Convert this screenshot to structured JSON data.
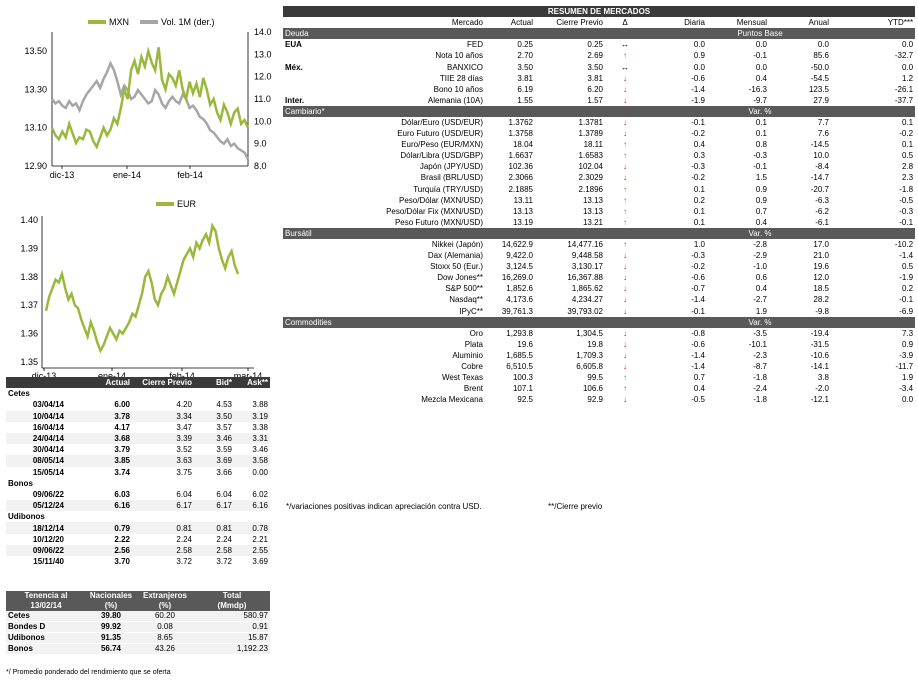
{
  "chart_data": [
    {
      "type": "line",
      "legend": [
        "MXN",
        "Vol. 1M (der.)"
      ],
      "colors": [
        "#9ab83c",
        "#a6a6a6"
      ],
      "x_tick_labels": [
        "dic-13",
        "ene-14",
        "feb-14"
      ],
      "y_left_ticks": [
        "13.50",
        "13.30",
        "13.10",
        "12.90"
      ],
      "y_right_ticks": [
        "14.0",
        "13.0",
        "12.0",
        "11.0",
        "10.0",
        "9.0",
        "8.0"
      ],
      "ylim_left": [
        12.9,
        13.6
      ],
      "ylim_right": [
        8.0,
        14.0
      ],
      "series": [
        {
          "name": "MXN",
          "axis": "left",
          "values": [
            13.1,
            13.06,
            13.04,
            13.08,
            13.05,
            13.12,
            13.07,
            13.02,
            13.05,
            13.04,
            13.09,
            13.08,
            13.03,
            13.0,
            13.05,
            13.1,
            13.06,
            13.09,
            13.15,
            13.12,
            13.2,
            13.3,
            13.25,
            13.4,
            13.45,
            13.38,
            13.47,
            13.42,
            13.5,
            13.44,
            13.4,
            13.52,
            13.35,
            13.3,
            13.38,
            13.36,
            13.32,
            13.4,
            13.3,
            13.25,
            13.34,
            13.28,
            13.33,
            13.26,
            13.36,
            13.3,
            13.22,
            13.25,
            13.18,
            13.14,
            13.22,
            13.18,
            13.12,
            13.18,
            13.2,
            13.12,
            13.14,
            13.1
          ]
        },
        {
          "name": "Vol. 1M (der.)",
          "axis": "right",
          "values": [
            11.0,
            10.8,
            10.9,
            10.7,
            10.6,
            10.9,
            10.7,
            10.8,
            10.5,
            10.9,
            11.2,
            11.4,
            11.6,
            11.8,
            11.5,
            11.9,
            12.2,
            12.6,
            12.3,
            11.8,
            11.2,
            11.6,
            11.4,
            11.0,
            11.1,
            11.4,
            11.2,
            11.0,
            10.8,
            10.9,
            11.4,
            11.2,
            10.8,
            10.6,
            10.9,
            11.1,
            10.9,
            10.8,
            11.2,
            11.0,
            10.6,
            10.7,
            10.5,
            10.2,
            10.1,
            9.9,
            9.6,
            9.5,
            9.3,
            9.1,
            9.0,
            9.2,
            8.9,
            9.0,
            8.8,
            8.7,
            8.6,
            8.3
          ]
        }
      ]
    },
    {
      "type": "line",
      "legend": [
        "EUR"
      ],
      "colors": [
        "#9ab83c"
      ],
      "x_tick_labels": [
        "dic-13",
        "ene-14",
        "feb-14",
        "mar-14"
      ],
      "y_ticks": [
        "1.40",
        "1.39",
        "1.38",
        "1.37",
        "1.36",
        "1.35"
      ],
      "ylim": [
        1.35,
        1.4
      ],
      "series": [
        {
          "name": "EUR",
          "values": [
            1.368,
            1.373,
            1.376,
            1.379,
            1.378,
            1.381,
            1.376,
            1.372,
            1.374,
            1.37,
            1.369,
            1.365,
            1.362,
            1.359,
            1.364,
            1.361,
            1.357,
            1.354,
            1.356,
            1.359,
            1.362,
            1.36,
            1.358,
            1.361,
            1.36,
            1.362,
            1.364,
            1.367,
            1.366,
            1.37,
            1.374,
            1.38,
            1.382,
            1.378,
            1.372,
            1.37,
            1.374,
            1.376,
            1.38,
            1.377,
            1.374,
            1.378,
            1.382,
            1.386,
            1.388,
            1.39,
            1.387,
            1.392,
            1.39,
            1.393,
            1.395,
            1.392,
            1.398,
            1.396,
            1.39,
            1.386,
            1.383,
            1.387,
            1.389,
            1.384,
            1.381
          ]
        }
      ]
    }
  ],
  "market": {
    "title": "RESUMEN DE MERCADOS",
    "headers": [
      "Mercado",
      "Actual",
      "Cierre Previo",
      "Δ",
      "Diaria",
      "Mensual",
      "Anual",
      "YTD***"
    ],
    "sections": [
      {
        "name": "Deuda",
        "unit": "Puntos Base",
        "rows": [
          {
            "region": "EUA",
            "label": "FED",
            "actual": "0.25",
            "prev": "0.25",
            "dir": "flat",
            "d": "0.0",
            "m": "0.0",
            "a": "0.0",
            "ytd": "0.0"
          },
          {
            "region": "",
            "label": "Nota 10 años",
            "actual": "2.70",
            "prev": "2.69",
            "dir": "up",
            "d": "0.9",
            "m": "-0.1",
            "a": "85.6",
            "ytd": "-32.7"
          },
          {
            "region": "Méx.",
            "label": "BANXICO",
            "actual": "3.50",
            "prev": "3.50",
            "dir": "flat",
            "d": "0.0",
            "m": "0.0",
            "a": "-50.0",
            "ytd": "0.0"
          },
          {
            "region": "",
            "label": "TIIE 28 días",
            "actual": "3.81",
            "prev": "3.81",
            "dir": "down",
            "d": "-0.6",
            "m": "0.4",
            "a": "-54.5",
            "ytd": "1.2"
          },
          {
            "region": "",
            "label": "Bono 10 años",
            "actual": "6.19",
            "prev": "6.20",
            "dir": "down",
            "d": "-1.4",
            "m": "-16.3",
            "a": "123.5",
            "ytd": "-26.1"
          },
          {
            "region": "Inter.",
            "label": "Alemania (10A)",
            "actual": "1.55",
            "prev": "1.57",
            "dir": "down",
            "d": "-1.9",
            "m": "-9.7",
            "a": "27.9",
            "ytd": "-37.7"
          }
        ]
      },
      {
        "name": "Cambiario*",
        "unit": "Var. %",
        "rows": [
          {
            "region": "",
            "label": "Dólar/Euro (USD/EUR)",
            "actual": "1.3762",
            "prev": "1.3781",
            "dir": "down",
            "d": "-0.1",
            "m": "0.1",
            "a": "7.7",
            "ytd": "0.1"
          },
          {
            "region": "",
            "label": "Euro Futuro (USD/EUR)",
            "actual": "1.3758",
            "prev": "1.3789",
            "dir": "down",
            "d": "-0.2",
            "m": "0.1",
            "a": "7.6",
            "ytd": "-0.2"
          },
          {
            "region": "",
            "label": "Euro/Peso (EUR/MXN)",
            "actual": "18.04",
            "prev": "18.11",
            "dir": "up",
            "d": "0.4",
            "m": "0.8",
            "a": "-14.5",
            "ytd": "0.1"
          },
          {
            "region": "",
            "label": "Dólar/Libra (USD/GBP)",
            "actual": "1.6637",
            "prev": "1.6583",
            "dir": "up",
            "d": "0.3",
            "m": "-0.3",
            "a": "10.0",
            "ytd": "0.5"
          },
          {
            "region": "",
            "label": "Japón (JPY/USD)",
            "actual": "102.36",
            "prev": "102.04",
            "dir": "down",
            "d": "-0.3",
            "m": "-0.1",
            "a": "-8.4",
            "ytd": "2.8"
          },
          {
            "region": "",
            "label": "Brasil (BRL/USD)",
            "actual": "2.3066",
            "prev": "2.3029",
            "dir": "down",
            "d": "-0.2",
            "m": "1.5",
            "a": "-14.7",
            "ytd": "2.3"
          },
          {
            "region": "",
            "label": "Turquía (TRY/USD)",
            "actual": "2.1885",
            "prev": "2.1896",
            "dir": "up",
            "d": "0.1",
            "m": "0.9",
            "a": "-20.7",
            "ytd": "-1.8"
          },
          {
            "region": "",
            "label": "Peso/Dólar (MXN/USD)",
            "actual": "13.11",
            "prev": "13.13",
            "dir": "up",
            "d": "0.2",
            "m": "0.9",
            "a": "-6.3",
            "ytd": "-0.5"
          },
          {
            "region": "",
            "label": "Peso/Dólar Fix (MXN/USD)",
            "actual": "13.13",
            "prev": "13.13",
            "dir": "up",
            "d": "0.1",
            "m": "0.7",
            "a": "-6.2",
            "ytd": "-0.3"
          },
          {
            "region": "",
            "label": "Peso Futuro (MXN/USD)",
            "actual": "13.19",
            "prev": "13.21",
            "dir": "up",
            "d": "0.1",
            "m": "0.4",
            "a": "-6.1",
            "ytd": "-0.1"
          }
        ]
      },
      {
        "name": "Bursátil",
        "unit": "Var. %",
        "rows": [
          {
            "region": "",
            "label": "Nikkei (Japón)",
            "actual": "14,622.9",
            "prev": "14,477.16",
            "dir": "up",
            "d": "1.0",
            "m": "-2.8",
            "a": "17.0",
            "ytd": "-10.2"
          },
          {
            "region": "",
            "label": "Dax (Alemania)",
            "actual": "9,422.0",
            "prev": "9,448.58",
            "dir": "down",
            "d": "-0.3",
            "m": "-2.9",
            "a": "21.0",
            "ytd": "-1.4"
          },
          {
            "region": "",
            "label": "Stoxx 50 (Eur.)",
            "actual": "3,124.5",
            "prev": "3,130.17",
            "dir": "down",
            "d": "-0.2",
            "m": "-1.0",
            "a": "19.6",
            "ytd": "0.5"
          },
          {
            "region": "",
            "label": "Dow Jones**",
            "actual": "16,269.0",
            "prev": "16,367.88",
            "dir": "down",
            "d": "-0.6",
            "m": "0.6",
            "a": "12.0",
            "ytd": "-1.9"
          },
          {
            "region": "",
            "label": "S&P 500**",
            "actual": "1,852.6",
            "prev": "1,865.62",
            "dir": "down",
            "d": "-0.7",
            "m": "0.4",
            "a": "18.5",
            "ytd": "0.2"
          },
          {
            "region": "",
            "label": "Nasdaq**",
            "actual": "4,173.6",
            "prev": "4,234.27",
            "dir": "down",
            "d": "-1.4",
            "m": "-2.7",
            "a": "28.2",
            "ytd": "-0.1"
          },
          {
            "region": "",
            "label": "IPyC**",
            "actual": "39,761.3",
            "prev": "39,793.02",
            "dir": "down",
            "d": "-0.1",
            "m": "1.9",
            "a": "-9.8",
            "ytd": "-6.9"
          }
        ]
      },
      {
        "name": "Commodities",
        "unit": "Var. %",
        "rows": [
          {
            "region": "",
            "label": "Oro",
            "actual": "1,293.8",
            "prev": "1,304.5",
            "dir": "down",
            "d": "-0.8",
            "m": "-3.5",
            "a": "-19.4",
            "ytd": "7.3"
          },
          {
            "region": "",
            "label": "Plata",
            "actual": "19.6",
            "prev": "19.8",
            "dir": "down",
            "d": "-0.6",
            "m": "-10.1",
            "a": "-31.5",
            "ytd": "0.9"
          },
          {
            "region": "",
            "label": "Aluminio",
            "actual": "1,685.5",
            "prev": "1,709.3",
            "dir": "down",
            "d": "-1.4",
            "m": "-2.3",
            "a": "-10.6",
            "ytd": "-3.9"
          },
          {
            "region": "",
            "label": "Cobre",
            "actual": "6,510.5",
            "prev": "6,605.8",
            "dir": "down",
            "d": "-1.4",
            "m": "-8.7",
            "a": "-14.1",
            "ytd": "-11.7"
          },
          {
            "region": "",
            "label": "West Texas",
            "actual": "100.3",
            "prev": "99.5",
            "dir": "up",
            "d": "0.7",
            "m": "-1.8",
            "a": "3.8",
            "ytd": "1.9"
          },
          {
            "region": "",
            "label": "Brent",
            "actual": "107.1",
            "prev": "106.6",
            "dir": "up",
            "d": "0.4",
            "m": "-2.4",
            "a": "-2.0",
            "ytd": "-3.4"
          },
          {
            "region": "",
            "label": "Mezcla Mexicana",
            "actual": "92.5",
            "prev": "92.9",
            "dir": "down",
            "d": "-0.5",
            "m": "-1.8",
            "a": "-12.1",
            "ytd": "0.0"
          }
        ]
      }
    ],
    "footnote1": "*/variaciones positivas indican apreciación contra USD.",
    "footnote2": "**/Cierre previo"
  },
  "rates": {
    "headers": [
      "Actual",
      "Cierre Previo",
      "Bid*",
      "Ask**"
    ],
    "groups": [
      {
        "name": "Cetes",
        "rows": [
          [
            "03/04/14",
            "6.00",
            "4.20",
            "4.53",
            "3.88"
          ],
          [
            "10/04/14",
            "3.78",
            "3.34",
            "3.50",
            "3.19"
          ],
          [
            "16/04/14",
            "4.17",
            "3.47",
            "3.57",
            "3.38"
          ],
          [
            "24/04/14",
            "3.68",
            "3.39",
            "3.46",
            "3.31"
          ],
          [
            "30/04/14",
            "3.79",
            "3.52",
            "3.59",
            "3.46"
          ],
          [
            "08/05/14",
            "3.85",
            "3.63",
            "3.69",
            "3.58"
          ],
          [
            "15/05/14",
            "3.74",
            "3.75",
            "3.66",
            "0.00"
          ]
        ]
      },
      {
        "name": "Bonos",
        "rows": [
          [
            "09/06/22",
            "6.03",
            "6.04",
            "6.04",
            "6.02"
          ],
          [
            "05/12/24",
            "6.16",
            "6.17",
            "6.17",
            "6.16"
          ]
        ]
      },
      {
        "name": "Udibonos",
        "rows": [
          [
            "18/12/14",
            "0.79",
            "0.81",
            "0.81",
            "0.78"
          ],
          [
            "10/12/20",
            "2.22",
            "2.24",
            "2.24",
            "2.21"
          ],
          [
            "09/06/22",
            "2.56",
            "2.58",
            "2.58",
            "2.55"
          ],
          [
            "15/11/40",
            "3.70",
            "3.72",
            "3.72",
            "3.69"
          ]
        ]
      }
    ]
  },
  "holdings": {
    "head1": [
      "Tenencia al",
      "Nacionales",
      "Extranjeros",
      "Total"
    ],
    "head2": [
      "13/02/14",
      "(%)",
      "(%)",
      "(Mmdp)"
    ],
    "rows": [
      [
        "Cetes",
        "39.80",
        "60.20",
        "580.97"
      ],
      [
        "Bondes D",
        "99.92",
        "0.08",
        "0.91"
      ],
      [
        "Udibonos",
        "91.35",
        "8.65",
        "15.87"
      ],
      [
        "Bonos",
        "56.74",
        "43.26",
        "1,192.23"
      ]
    ],
    "footnote": "*/ Promedio ponderado del rendimiento que se oferta"
  }
}
